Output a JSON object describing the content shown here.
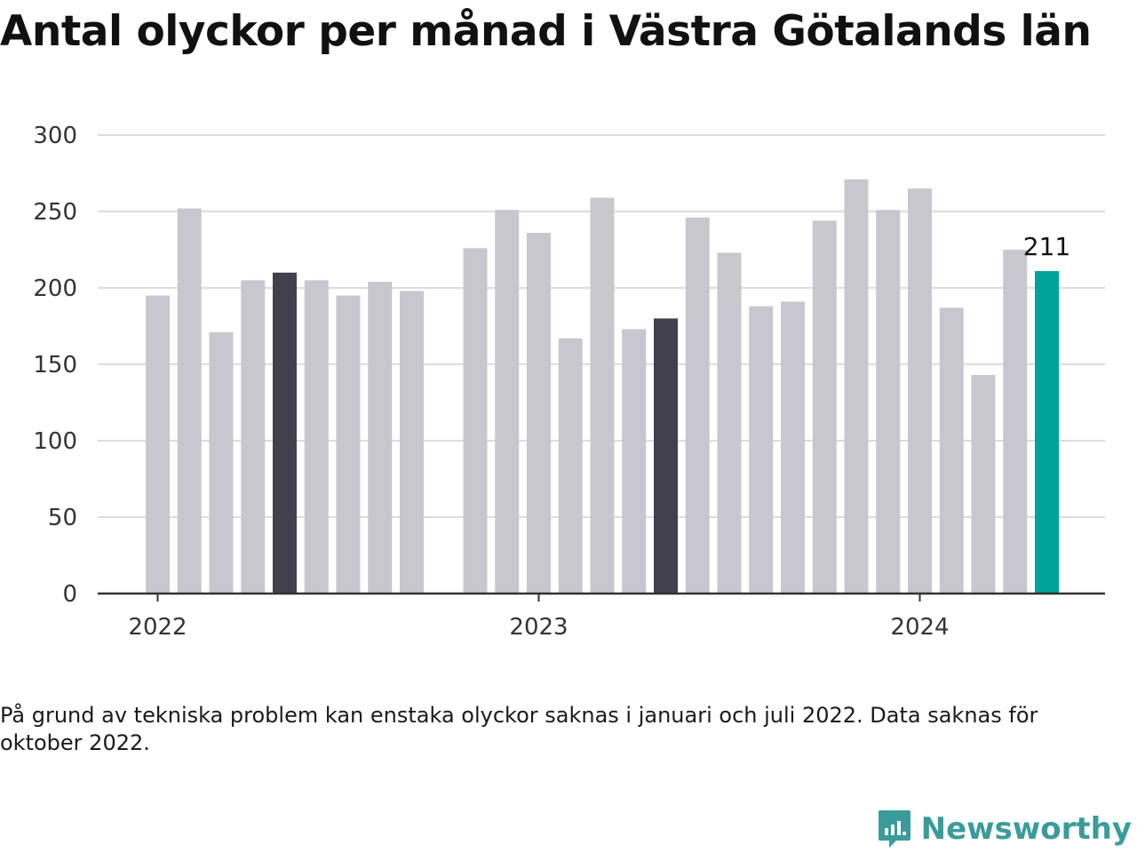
{
  "title": "Antal olyckor per månad i Västra Götalands län",
  "footnote": "På grund av tekniska problem kan enstaka olyckor saknas i januari och juli 2022. Data saknas för oktober 2022.",
  "logo_text": "Newsworthy",
  "colors": {
    "bar": "#c8c7cf",
    "highlight": "#42404c",
    "latest": "#00a39a",
    "grid": "#dddddd",
    "axis": "#333333"
  },
  "chart_data": {
    "type": "bar",
    "title": "Antal olyckor per månad i Västra Götalands län",
    "xlabel": "",
    "ylabel": "",
    "ylim": [
      0,
      300
    ],
    "yticks": [
      0,
      50,
      100,
      150,
      200,
      250,
      300
    ],
    "xticks": [
      {
        "label": "2022",
        "x": "2022-01"
      },
      {
        "label": "2023",
        "x": "2023-01"
      },
      {
        "label": "2024",
        "x": "2024-01"
      }
    ],
    "grid": true,
    "x": [
      "2022-01",
      "2022-02",
      "2022-03",
      "2022-04",
      "2022-05",
      "2022-06",
      "2022-07",
      "2022-08",
      "2022-09",
      "2022-10",
      "2022-11",
      "2022-12",
      "2023-01",
      "2023-02",
      "2023-03",
      "2023-04",
      "2023-05",
      "2023-06",
      "2023-07",
      "2023-08",
      "2023-09",
      "2023-10",
      "2023-11",
      "2023-12",
      "2024-01",
      "2024-02",
      "2024-03",
      "2024-04",
      "2024-05"
    ],
    "values": [
      195,
      252,
      171,
      205,
      210,
      205,
      195,
      204,
      198,
      null,
      226,
      251,
      236,
      167,
      259,
      173,
      180,
      246,
      223,
      188,
      191,
      244,
      271,
      251,
      265,
      187,
      143,
      225,
      211
    ],
    "highlighted": [
      "2022-05",
      "2023-05"
    ],
    "latest": "2024-05",
    "annotations": [
      {
        "x": "2024-05",
        "text": "211"
      }
    ]
  }
}
